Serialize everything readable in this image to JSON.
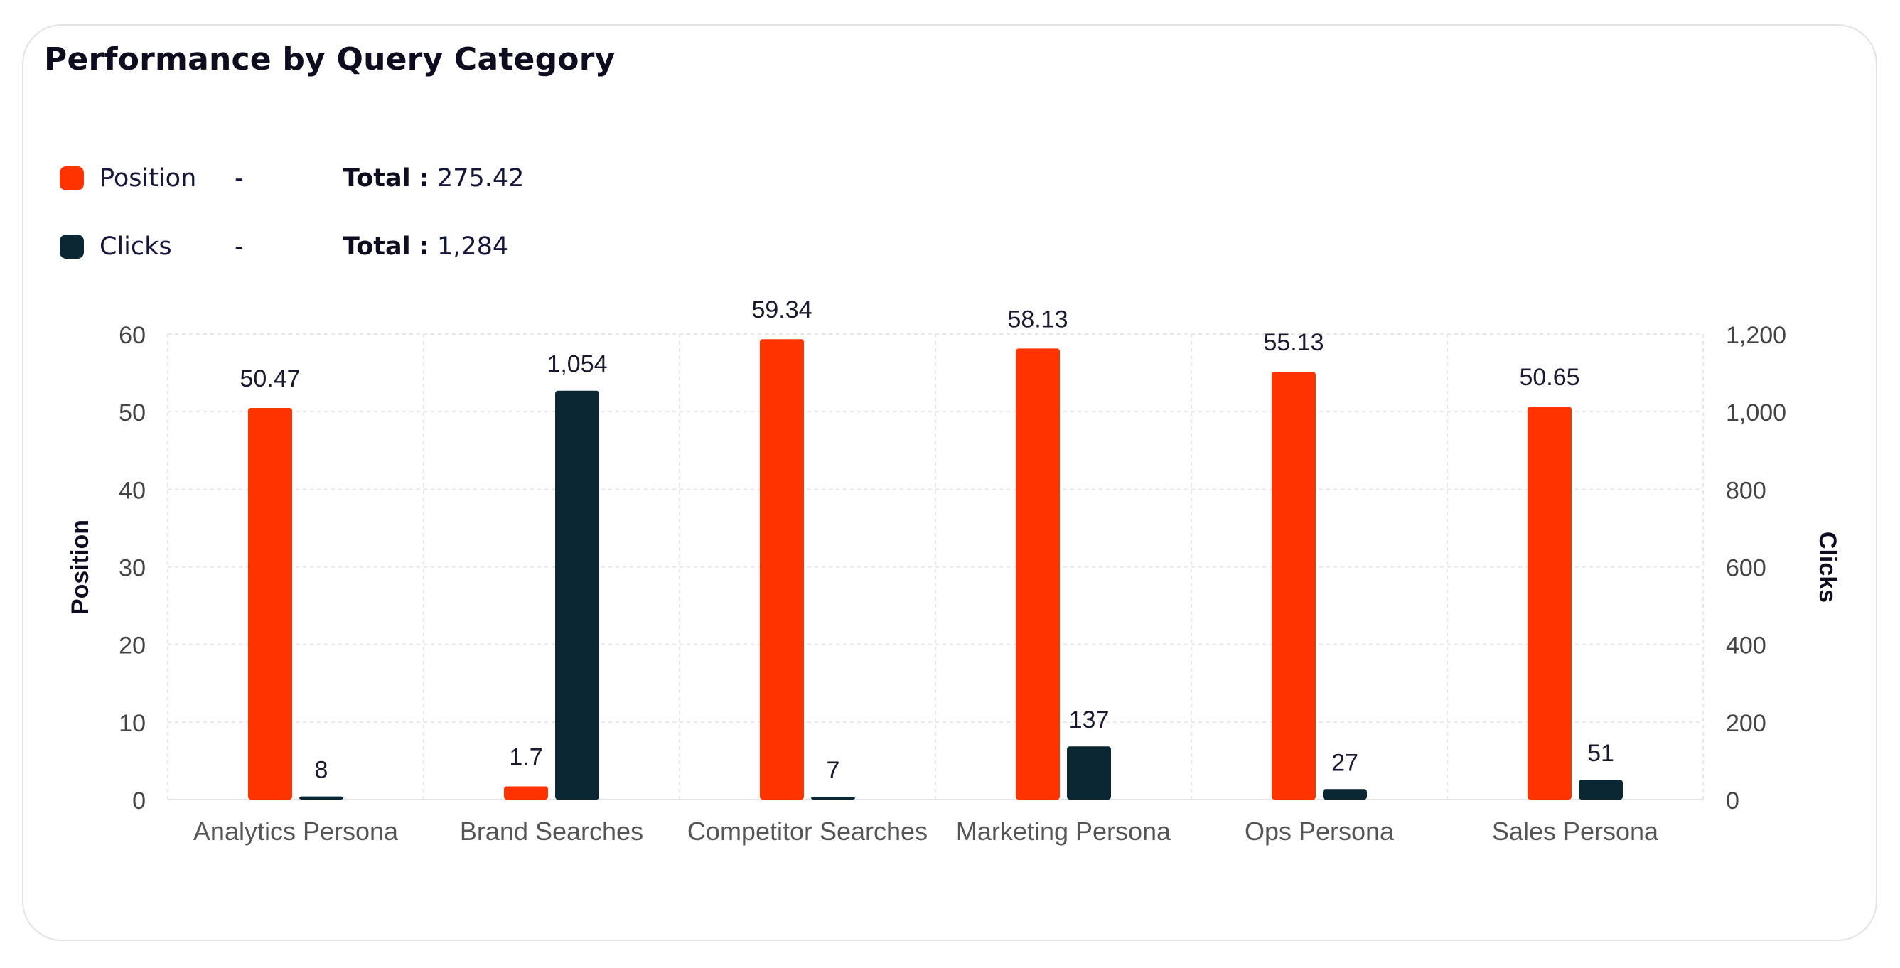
{
  "title": "Performance by Query Category",
  "legend": [
    {
      "name": "Position",
      "color": "#ff3300",
      "dash": "-",
      "total_label": "Total :",
      "total_value": "275.42"
    },
    {
      "name": "Clicks",
      "color": "#0b2734",
      "dash": "-",
      "total_label": "Total :",
      "total_value": "1,284"
    }
  ],
  "chart_data": {
    "type": "bar",
    "categories": [
      "Analytics Persona",
      "Brand Searches",
      "Competitor Searches",
      "Marketing Persona",
      "Ops Persona",
      "Sales Persona"
    ],
    "series": [
      {
        "name": "Position",
        "axis": "left",
        "color": "#ff3300",
        "values": [
          50.47,
          1.7,
          59.34,
          58.13,
          55.13,
          50.65
        ],
        "labels": [
          "50.47",
          "1.7",
          "59.34",
          "58.13",
          "55.13",
          "50.65"
        ]
      },
      {
        "name": "Clicks",
        "axis": "right",
        "color": "#0b2734",
        "values": [
          8,
          1054,
          7,
          137,
          27,
          51
        ],
        "labels": [
          "8",
          "1,054",
          "7",
          "137",
          "27",
          "51"
        ]
      }
    ],
    "ylabel": "Position",
    "y2label": "Clicks",
    "ylim": [
      0,
      60
    ],
    "y2lim": [
      0,
      1200
    ],
    "yticks": [
      "0",
      "10",
      "20",
      "30",
      "40",
      "50",
      "60"
    ],
    "y2ticks": [
      "0",
      "200",
      "400",
      "600",
      "800",
      "1,000",
      "1,200"
    ],
    "grid": true,
    "legend_position": "top-left"
  }
}
